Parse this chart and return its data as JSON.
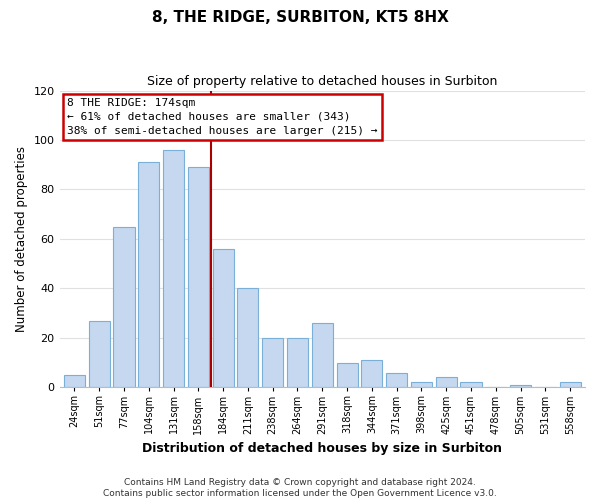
{
  "title": "8, THE RIDGE, SURBITON, KT5 8HX",
  "subtitle": "Size of property relative to detached houses in Surbiton",
  "xlabel": "Distribution of detached houses by size in Surbiton",
  "ylabel": "Number of detached properties",
  "categories": [
    "24sqm",
    "51sqm",
    "77sqm",
    "104sqm",
    "131sqm",
    "158sqm",
    "184sqm",
    "211sqm",
    "238sqm",
    "264sqm",
    "291sqm",
    "318sqm",
    "344sqm",
    "371sqm",
    "398sqm",
    "425sqm",
    "451sqm",
    "478sqm",
    "505sqm",
    "531sqm",
    "558sqm"
  ],
  "values": [
    5,
    27,
    65,
    91,
    96,
    89,
    56,
    40,
    20,
    20,
    26,
    10,
    11,
    6,
    2,
    4,
    2,
    0,
    1,
    0,
    2
  ],
  "bar_color": "#c5d8f0",
  "bar_edge_color": "#7ab0d8",
  "marker_line_color": "#aa0000",
  "annotation_box_edge_color": "#cc0000",
  "annotation_lines": [
    "8 THE RIDGE: 174sqm",
    "← 61% of detached houses are smaller (343)",
    "38% of semi-detached houses are larger (215) →"
  ],
  "ylim": [
    0,
    120
  ],
  "yticks": [
    0,
    20,
    40,
    60,
    80,
    100,
    120
  ],
  "footer_lines": [
    "Contains HM Land Registry data © Crown copyright and database right 2024.",
    "Contains public sector information licensed under the Open Government Licence v3.0."
  ],
  "background_color": "#ffffff",
  "grid_color": "#e0e0e0"
}
